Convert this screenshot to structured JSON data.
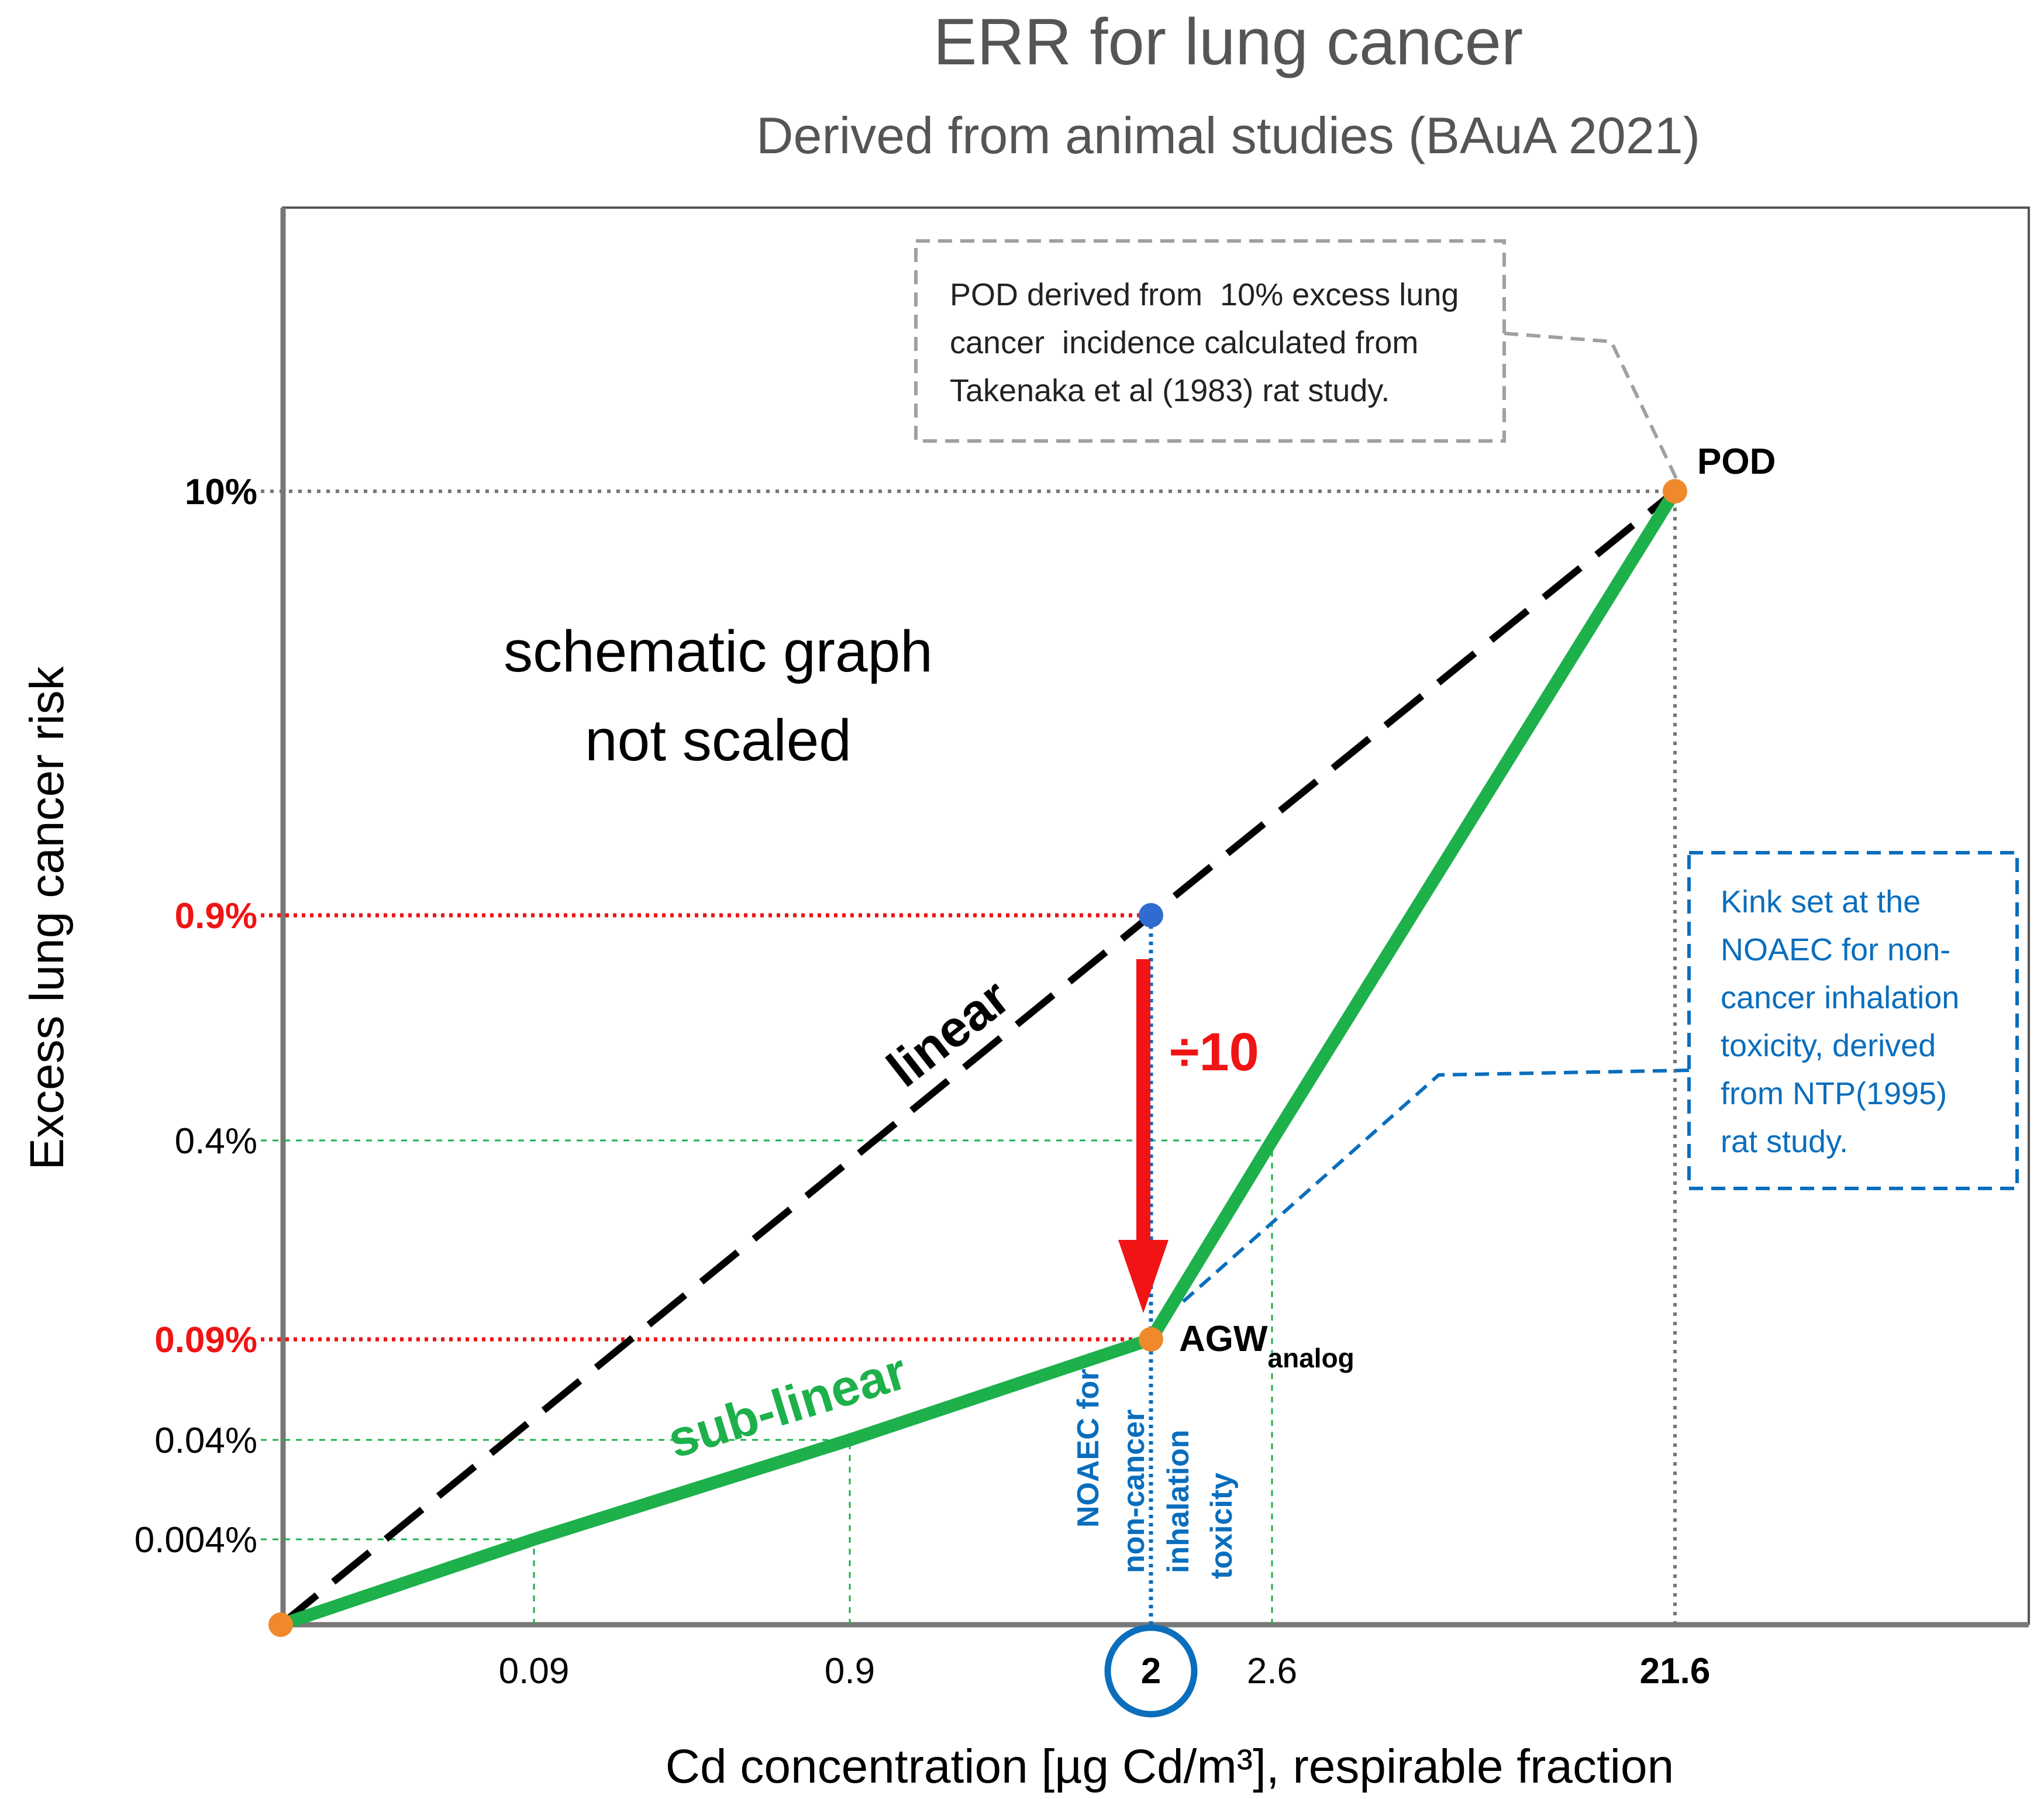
{
  "chart_data": {
    "type": "line",
    "title": "ERR for lung cancer",
    "subtitle": "Derived from animal studies (BAuA 2021)",
    "xlabel": "Cd concentration [µg Cd/m³], respirable fraction",
    "ylabel": "Excess lung cancer risk",
    "x_ticks": [
      {
        "value": 0.09,
        "label": "0.09"
      },
      {
        "value": 0.9,
        "label": "0.9"
      },
      {
        "value": 2,
        "label": "2"
      },
      {
        "value": 2.6,
        "label": "2.6"
      },
      {
        "value": 21.6,
        "label": "21.6"
      }
    ],
    "y_ticks": [
      {
        "value": 0.004,
        "label": "0.004%"
      },
      {
        "value": 0.04,
        "label": "0.04%"
      },
      {
        "value": 0.09,
        "label": "0.09%"
      },
      {
        "value": 0.4,
        "label": "0.4%"
      },
      {
        "value": 0.9,
        "label": "0.9%"
      },
      {
        "value": 10,
        "label": "10%"
      }
    ],
    "series": [
      {
        "name": "linear",
        "style": "dashed",
        "color": "#000000",
        "points": [
          {
            "x": 0,
            "y": 0
          },
          {
            "x": 2,
            "y": 0.9
          },
          {
            "x": 21.6,
            "y": 10
          }
        ]
      },
      {
        "name": "sub-linear",
        "style": "solid",
        "color": "#1db04b",
        "points": [
          {
            "x": 0,
            "y": 0
          },
          {
            "x": 0.09,
            "y": 0.004
          },
          {
            "x": 0.9,
            "y": 0.04
          },
          {
            "x": 2,
            "y": 0.09
          },
          {
            "x": 2.6,
            "y": 0.4
          },
          {
            "x": 21.6,
            "y": 10
          }
        ]
      }
    ],
    "markers": [
      {
        "name": "origin",
        "x": 0,
        "y": 0,
        "color": "#f0892c"
      },
      {
        "name": "POD",
        "label": "POD",
        "x": 21.6,
        "y": 10,
        "color": "#f0892c"
      },
      {
        "name": "AGW",
        "label": "AGW",
        "sub": "analog",
        "x": 2,
        "y": 0.09,
        "color": "#f0892c"
      },
      {
        "name": "linear-at-2",
        "x": 2,
        "y": 0.9,
        "color": "#2f6bd0"
      }
    ],
    "annotations": {
      "schematic": [
        "schematic graph",
        "not scaled"
      ],
      "divide_by": "÷10",
      "linear_label": "linear",
      "sublinear_label": "sub-linear",
      "noaec_label": [
        "NOAEC for",
        "non-cancer",
        "inhalation",
        "toxicity"
      ],
      "pod_box": [
        "POD derived from  10% excess lung",
        "cancer  incidence calculated from",
        "Takenaka et al (1983) rat study."
      ],
      "kink_box": [
        "Kink set at the",
        "NOAEC for non-",
        "cancer inhalation",
        "toxicity, derived",
        "from NTP(1995)",
        "rat study."
      ]
    },
    "scale": "schematic (not scaled)",
    "colors": {
      "red": "#f01414",
      "green": "#1db04b",
      "blue": "#0a6ebd",
      "orange": "#f0892c",
      "gray": "#777777"
    }
  }
}
